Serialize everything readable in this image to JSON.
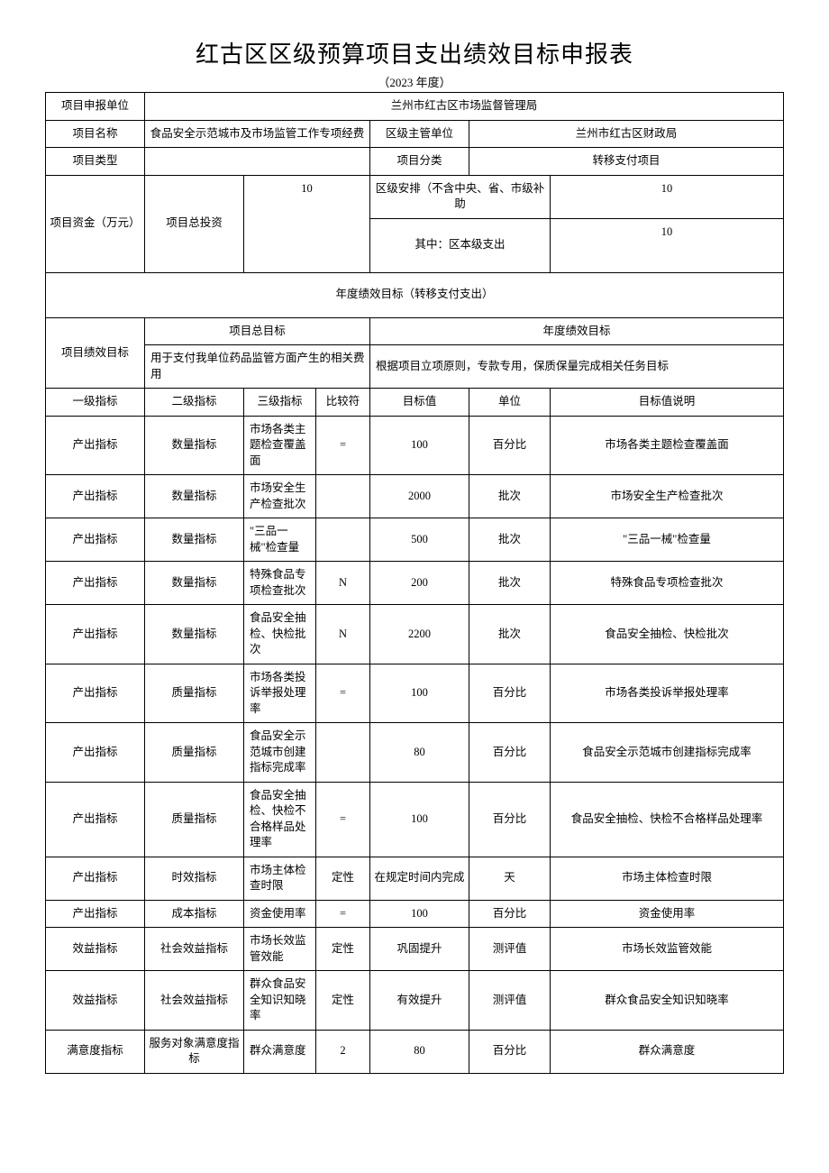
{
  "title": "红古区区级预算项目支出绩效目标申报表",
  "subtitle": "（2023 年度）",
  "header": {
    "applicant_label": "项目申报单位",
    "applicant_value": "兰州市红古区市场监督管理局",
    "project_name_label": "项目名称",
    "project_name_value": "食品安全示范城市及市场监管工作专项经费",
    "district_dept_label": "区级主管单位",
    "district_dept_value": "兰州市红古区财政局",
    "project_type_label": "项目类型",
    "project_type_value": "",
    "project_category_label": "项目分类",
    "project_category_value": "转移支付项目"
  },
  "funding": {
    "label": "项目资金（万元）",
    "total_invest_label": "项目总投资",
    "total_invest_value": "10",
    "district_arrange_label": "区级安排（不含中央、省、市级补助",
    "district_arrange_value": "10",
    "district_self_label": "其中：区本级支出",
    "district_self_value": "10"
  },
  "annual_section_title": "年度绩效目标（转移支付支出）",
  "goal": {
    "row_label": "项目绩效目标",
    "overall_label": "项目总目标",
    "annual_label": "年度绩效目标",
    "overall_text": "用于支付我单位药品监管方面产生的相关费用",
    "annual_text": "根据项目立项原则，专款专用，保质保量完成相关任务目标"
  },
  "columns": {
    "l1": "一级指标",
    "l2": "二级指标",
    "l3": "三级指标",
    "op": "比较符",
    "target": "目标值",
    "unit": "单位",
    "desc": "目标值说明"
  },
  "rows": [
    {
      "l1": "产出指标",
      "l2": "数量指标",
      "l3": "市场各类主题检查覆盖面",
      "op": "=",
      "target": "100",
      "unit": "百分比",
      "desc": "市场各类主题检查覆盖面"
    },
    {
      "l1": "产出指标",
      "l2": "数量指标",
      "l3": "市场安全生产检查批次",
      "op": "",
      "target": "2000",
      "unit": "批次",
      "desc": "市场安全生产检查批次"
    },
    {
      "l1": "产出指标",
      "l2": "数量指标",
      "l3": "\"三品一械\"检查量",
      "op": "",
      "target": "500",
      "unit": "批次",
      "desc": "\"三品一械\"检查量"
    },
    {
      "l1": "产出指标",
      "l2": "数量指标",
      "l3": "特殊食品专项检查批次",
      "op": "N",
      "target": "200",
      "unit": "批次",
      "desc": "特殊食品专项检查批次"
    },
    {
      "l1": "产出指标",
      "l2": "数量指标",
      "l3": "食品安全抽检、快检批次",
      "op": "N",
      "target": "2200",
      "unit": "批次",
      "desc": "食品安全抽检、快检批次"
    },
    {
      "l1": "产出指标",
      "l2": "质量指标",
      "l3": "市场各类投诉举报处理率",
      "op": "=",
      "target": "100",
      "unit": "百分比",
      "desc": "市场各类投诉举报处理率"
    },
    {
      "l1": "产出指标",
      "l2": "质量指标",
      "l3": "食品安全示范城市创建指标完成率",
      "op": "",
      "target": "80",
      "unit": "百分比",
      "desc": "食品安全示范城市创建指标完成率"
    },
    {
      "l1": "产出指标",
      "l2": "质量指标",
      "l3": "食品安全抽检、快检不合格样品处理率",
      "op": "=",
      "target": "100",
      "unit": "百分比",
      "desc": "食品安全抽检、快检不合格样品处理率"
    },
    {
      "l1": "产出指标",
      "l2": "时效指标",
      "l3": "市场主体检查时限",
      "op": "定性",
      "target": "在规定时间内完成",
      "unit": "天",
      "desc": "市场主体检查时限"
    },
    {
      "l1": "产出指标",
      "l2": "成本指标",
      "l3": "资金使用率",
      "op": "=",
      "target": "100",
      "unit": "百分比",
      "desc": "资金使用率"
    },
    {
      "l1": "效益指标",
      "l2": "社会效益指标",
      "l3": "市场长效监管效能",
      "op": "定性",
      "target": "巩固提升",
      "unit": "测评值",
      "desc": "市场长效监管效能"
    },
    {
      "l1": "效益指标",
      "l2": "社会效益指标",
      "l3": "群众食品安全知识知晓率",
      "op": "定性",
      "target": "有效提升",
      "unit": "测评值",
      "desc": "群众食品安全知识知晓率"
    },
    {
      "l1": "满意度指标",
      "l2": "服务对象满意度指标",
      "l3": "群众满意度",
      "op": "2",
      "target": "80",
      "unit": "百分比",
      "desc": "群众满意度"
    }
  ]
}
